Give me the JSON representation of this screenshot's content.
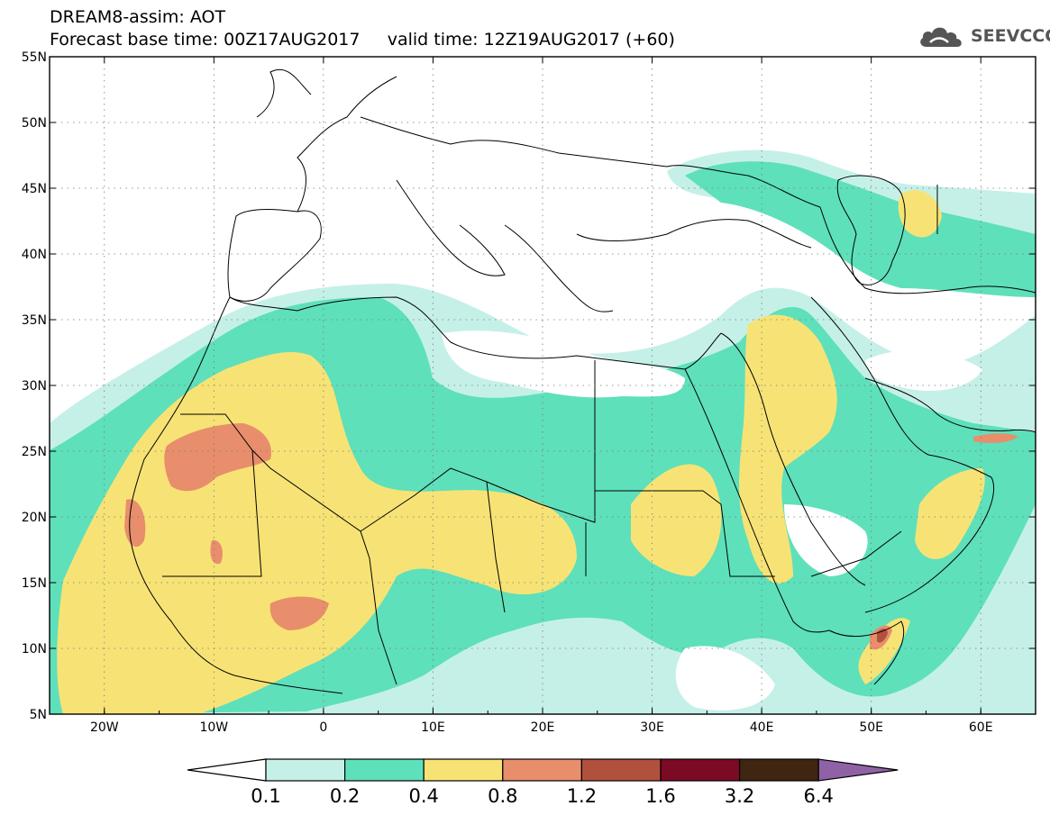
{
  "title": {
    "line1": "DREAM8-assim: AOT",
    "line2_base": "Forecast base time: 00Z17AUG2017",
    "line2_valid": "valid time: 12Z19AUG2017 (+60)"
  },
  "logo": {
    "text": "SEEVCCC",
    "icon": "cloud-logo-icon"
  },
  "map": {
    "lon_range": [
      -25,
      65
    ],
    "lat_range": [
      5,
      55
    ],
    "lat_ticks": [
      "5N",
      "10N",
      "15N",
      "20N",
      "25N",
      "30N",
      "35N",
      "40N",
      "45N",
      "50N",
      "55N"
    ],
    "lon_ticks": [
      "20W",
      "10W",
      "0",
      "10E",
      "20E",
      "30E",
      "40E",
      "50E",
      "60E"
    ],
    "lon_tick_values": [
      -20,
      -10,
      0,
      10,
      20,
      30,
      40,
      50,
      60
    ],
    "lat_tick_values": [
      5,
      10,
      15,
      20,
      25,
      30,
      35,
      40,
      45,
      50,
      55
    ],
    "grid": true
  },
  "colorbar": {
    "labels": [
      "0.1",
      "0.2",
      "0.4",
      "0.8",
      "1.2",
      "1.6",
      "3.2",
      "6.4"
    ],
    "colors": [
      "#ffffff",
      "#c5f0e8",
      "#5ee0bb",
      "#f7e375",
      "#e88e6c",
      "#b2503e",
      "#7d0a25",
      "#3f2612",
      "#8f62a5"
    ]
  },
  "colors": {
    "level1": "#c5f0e8",
    "level2": "#5ee0bb",
    "level3": "#f7e375",
    "level4": "#e88e6c",
    "level5": "#b2503e"
  }
}
